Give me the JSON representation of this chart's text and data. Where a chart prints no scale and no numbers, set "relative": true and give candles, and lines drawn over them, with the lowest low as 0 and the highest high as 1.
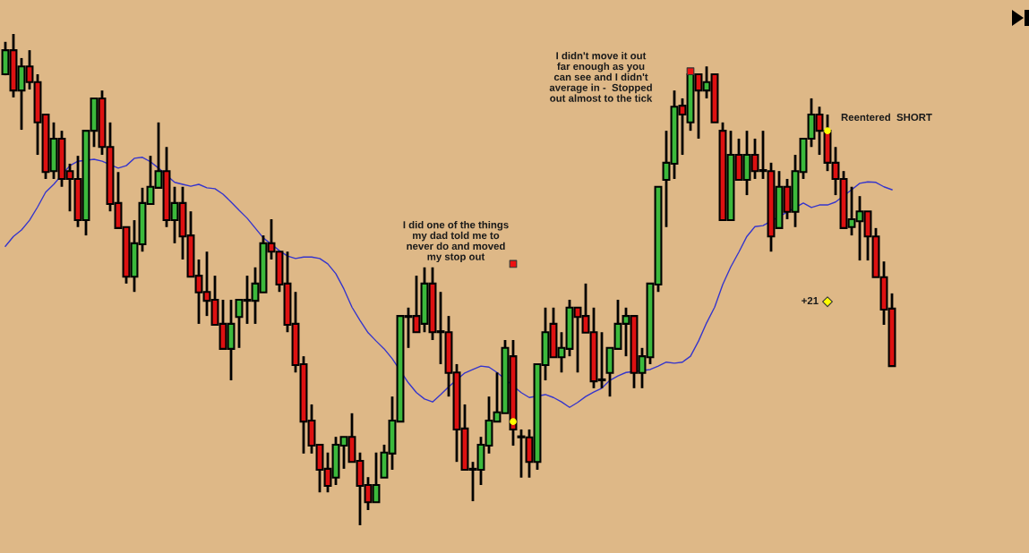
{
  "chart_data": {
    "type": "candlestick",
    "relative": true,
    "categories": [
      null,
      null,
      null,
      null,
      null,
      null,
      null,
      null,
      null,
      null,
      null,
      null,
      null,
      null,
      null,
      null,
      null,
      null,
      null,
      null,
      null,
      null,
      null,
      null,
      null,
      null,
      null,
      null,
      null,
      null,
      null,
      null,
      null,
      null,
      null,
      null,
      null,
      null,
      null,
      null,
      null,
      null,
      null,
      null,
      null,
      null,
      null,
      null,
      null,
      null,
      null,
      null,
      null,
      null,
      null,
      null,
      null,
      null,
      null,
      null,
      null,
      null,
      null,
      null,
      null,
      null,
      null,
      null,
      null,
      null,
      null,
      null,
      null,
      null,
      null,
      null,
      null,
      null,
      null,
      null,
      null,
      null,
      null,
      null,
      null,
      null,
      null,
      null,
      null,
      null,
      null,
      null,
      null,
      null,
      null,
      null,
      null,
      null,
      null,
      null,
      null,
      null,
      null,
      null,
      null,
      null,
      null,
      null,
      null,
      null,
      null
    ],
    "ohlc": [
      [
        0.918,
        0.984,
        0.916,
        0.967
      ],
      [
        0.967,
        1.0,
        0.871,
        0.885
      ],
      [
        0.885,
        0.951,
        0.805,
        0.934
      ],
      [
        0.934,
        0.967,
        0.887,
        0.902
      ],
      [
        0.902,
        0.918,
        0.754,
        0.82
      ],
      [
        0.836,
        0.836,
        0.705,
        0.719
      ],
      [
        0.721,
        0.82,
        0.705,
        0.787
      ],
      [
        0.787,
        0.803,
        0.689,
        0.705
      ],
      [
        0.721,
        0.736,
        0.639,
        0.705
      ],
      [
        0.705,
        0.752,
        0.607,
        0.621
      ],
      [
        0.621,
        0.803,
        0.59,
        0.803
      ],
      [
        0.803,
        0.869,
        0.77,
        0.869
      ],
      [
        0.869,
        0.885,
        0.754,
        0.77
      ],
      [
        0.77,
        0.82,
        0.639,
        0.654
      ],
      [
        0.656,
        0.719,
        0.605,
        0.605
      ],
      [
        0.607,
        0.607,
        0.492,
        0.506
      ],
      [
        0.506,
        0.621,
        0.475,
        0.574
      ],
      [
        0.572,
        0.687,
        0.557,
        0.656
      ],
      [
        0.654,
        0.752,
        0.654,
        0.689
      ],
      [
        0.687,
        0.82,
        0.687,
        0.721
      ],
      [
        0.721,
        0.77,
        0.607,
        0.621
      ],
      [
        0.621,
        0.689,
        0.574,
        0.656
      ],
      [
        0.656,
        0.689,
        0.541,
        0.588
      ],
      [
        0.59,
        0.639,
        0.506,
        0.506
      ],
      [
        0.508,
        0.541,
        0.41,
        0.474
      ],
      [
        0.475,
        0.557,
        0.426,
        0.457
      ],
      [
        0.459,
        0.508,
        0.408,
        0.408
      ],
      [
        0.41,
        0.459,
        0.359,
        0.359
      ],
      [
        0.359,
        0.459,
        0.295,
        0.41
      ],
      [
        0.424,
        0.459,
        0.361,
        0.459
      ],
      [
        0.457,
        0.508,
        0.41,
        0.459
      ],
      [
        0.457,
        0.525,
        0.41,
        0.492
      ],
      [
        0.474,
        0.59,
        0.474,
        0.574
      ],
      [
        0.574,
        0.623,
        0.541,
        0.557
      ],
      [
        0.557,
        0.557,
        0.475,
        0.49
      ],
      [
        0.492,
        0.557,
        0.393,
        0.408
      ],
      [
        0.41,
        0.475,
        0.311,
        0.326
      ],
      [
        0.328,
        0.344,
        0.146,
        0.211
      ],
      [
        0.213,
        0.246,
        0.146,
        0.162
      ],
      [
        0.164,
        0.164,
        0.067,
        0.113
      ],
      [
        0.115,
        0.148,
        0.067,
        0.08
      ],
      [
        0.097,
        0.18,
        0.082,
        0.164
      ],
      [
        0.162,
        0.18,
        0.115,
        0.18
      ],
      [
        0.18,
        0.228,
        0.129,
        0.129
      ],
      [
        0.131,
        0.148,
        0.0,
        0.08
      ],
      [
        0.082,
        0.098,
        0.031,
        0.047
      ],
      [
        0.047,
        0.148,
        0.047,
        0.082
      ],
      [
        0.097,
        0.164,
        0.097,
        0.148
      ],
      [
        0.146,
        0.262,
        0.113,
        0.213
      ],
      [
        0.211,
        0.426,
        0.211,
        0.426
      ],
      [
        0.424,
        0.443,
        0.361,
        0.426
      ],
      [
        0.426,
        0.508,
        0.393,
        0.393
      ],
      [
        0.41,
        0.525,
        0.393,
        0.492
      ],
      [
        0.492,
        0.525,
        0.377,
        0.393
      ],
      [
        0.393,
        0.475,
        0.328,
        0.393
      ],
      [
        0.393,
        0.426,
        0.262,
        0.31
      ],
      [
        0.311,
        0.328,
        0.129,
        0.195
      ],
      [
        0.197,
        0.246,
        0.113,
        0.113
      ],
      [
        0.113,
        0.129,
        0.049,
        0.113
      ],
      [
        0.113,
        0.18,
        0.082,
        0.164
      ],
      [
        0.162,
        0.262,
        0.146,
        0.213
      ],
      [
        0.211,
        0.311,
        0.211,
        0.23
      ],
      [
        0.228,
        0.377,
        0.228,
        0.361
      ],
      [
        0.344,
        0.377,
        0.162,
        0.195
      ],
      [
        0.179,
        0.195,
        0.097,
        0.179
      ],
      [
        0.179,
        0.195,
        0.097,
        0.129
      ],
      [
        0.129,
        0.328,
        0.113,
        0.328
      ],
      [
        0.326,
        0.443,
        0.295,
        0.393
      ],
      [
        0.41,
        0.443,
        0.342,
        0.342
      ],
      [
        0.342,
        0.393,
        0.311,
        0.361
      ],
      [
        0.359,
        0.459,
        0.344,
        0.443
      ],
      [
        0.443,
        0.443,
        0.311,
        0.424
      ],
      [
        0.426,
        0.492,
        0.392,
        0.392
      ],
      [
        0.393,
        0.443,
        0.279,
        0.293
      ],
      [
        0.295,
        0.393,
        0.279,
        0.295
      ],
      [
        0.31,
        0.361,
        0.262,
        0.361
      ],
      [
        0.359,
        0.459,
        0.359,
        0.41
      ],
      [
        0.41,
        0.443,
        0.344,
        0.426
      ],
      [
        0.426,
        0.426,
        0.279,
        0.31
      ],
      [
        0.31,
        0.361,
        0.279,
        0.344
      ],
      [
        0.342,
        0.492,
        0.328,
        0.492
      ],
      [
        0.49,
        0.689,
        0.475,
        0.689
      ],
      [
        0.703,
        0.803,
        0.607,
        0.738
      ],
      [
        0.736,
        0.885,
        0.705,
        0.852
      ],
      [
        0.854,
        0.869,
        0.754,
        0.836
      ],
      [
        0.82,
        0.918,
        0.803,
        0.918
      ],
      [
        0.918,
        0.918,
        0.787,
        0.885
      ],
      [
        0.885,
        0.934,
        0.869,
        0.902
      ],
      [
        0.918,
        0.918,
        0.82,
        0.82
      ],
      [
        0.803,
        0.82,
        0.621,
        0.621
      ],
      [
        0.621,
        0.803,
        0.621,
        0.754
      ],
      [
        0.754,
        0.787,
        0.703,
        0.703
      ],
      [
        0.703,
        0.803,
        0.672,
        0.754
      ],
      [
        0.754,
        0.787,
        0.705,
        0.721
      ],
      [
        0.721,
        0.803,
        0.705,
        0.721
      ],
      [
        0.721,
        0.738,
        0.557,
        0.588
      ],
      [
        0.605,
        0.721,
        0.605,
        0.689
      ],
      [
        0.689,
        0.705,
        0.623,
        0.638
      ],
      [
        0.638,
        0.754,
        0.607,
        0.721
      ],
      [
        0.719,
        0.787,
        0.705,
        0.787
      ],
      [
        0.787,
        0.869,
        0.77,
        0.836
      ],
      [
        0.836,
        0.852,
        0.754,
        0.803
      ],
      [
        0.803,
        0.836,
        0.721,
        0.738
      ],
      [
        0.738,
        0.77,
        0.672,
        0.705
      ],
      [
        0.705,
        0.721,
        0.605,
        0.605
      ],
      [
        0.607,
        0.689,
        0.59,
        0.623
      ],
      [
        0.619,
        0.67,
        0.539,
        0.639
      ],
      [
        0.639,
        0.639,
        0.539,
        0.588
      ],
      [
        0.588,
        0.605,
        0.505,
        0.505
      ],
      [
        0.505,
        0.537,
        0.408,
        0.439
      ],
      [
        0.441,
        0.472,
        0.324,
        0.324
      ]
    ],
    "series": [
      {
        "type": "line",
        "color": "#3535cc",
        "marker": "none",
        "line_style": "solid",
        "values": [
          0.568,
          0.588,
          0.601,
          0.621,
          0.648,
          0.678,
          0.694,
          null,
          0.732,
          0.741,
          null,
          0.745,
          0.741,
          null,
          0.727,
          0.732,
          0.747,
          0.749,
          0.74,
          0.727,
          null,
          0.698,
          0.694,
          0.69,
          0.694,
          0.687,
          0.685,
          0.674,
          0.658,
          0.641,
          0.625,
          0.605,
          0.585,
          null,
          0.559,
          0.548,
          0.543,
          0.546,
          0.546,
          0.543,
          0.532,
          0.512,
          0.481,
          0.444,
          0.417,
          0.392,
          0.375,
          0.359,
          0.339,
          null,
          0.29,
          0.27,
          0.257,
          0.251,
          0.266,
          0.282,
          null,
          0.31,
          0.317,
          0.324,
          0.322,
          0.311,
          null,
          null,
          0.27,
          0.26,
          null,
          0.266,
          0.26,
          0.251,
          0.24,
          0.25,
          0.262,
          0.271,
          0.279,
          0.295,
          0.304,
          0.311,
          null,
          null,
          0.317,
          0.324,
          0.332,
          0.33,
          0.332,
          0.344,
          0.375,
          0.412,
          0.444,
          0.49,
          0.526,
          0.556,
          0.588,
          0.608,
          0.61,
          null,
          null,
          null,
          null,
          0.656,
          0.647,
          0.652,
          0.652,
          0.658,
          null,
          0.683,
          0.696,
          0.699,
          0.698,
          0.689,
          0.683
        ]
      },
      {
        "type": "scatter",
        "color": "#ffff00",
        "marker": "circle",
        "values": [
          null,
          null,
          null,
          null,
          null,
          null,
          null,
          null,
          null,
          null,
          null,
          null,
          null,
          null,
          null,
          null,
          null,
          null,
          null,
          null,
          null,
          null,
          null,
          null,
          null,
          null,
          null,
          null,
          null,
          null,
          null,
          null,
          null,
          null,
          null,
          null,
          null,
          null,
          null,
          null,
          null,
          null,
          null,
          null,
          null,
          null,
          null,
          null,
          null,
          null,
          null,
          null,
          null,
          null,
          null,
          null,
          null,
          null,
          null,
          null,
          null,
          null,
          null,
          0.211,
          null,
          null,
          null,
          null,
          null,
          null,
          null,
          null,
          null,
          null,
          null,
          null,
          null,
          null,
          null,
          null,
          null,
          null,
          null,
          null,
          null,
          null,
          null,
          null,
          null,
          null,
          null,
          null,
          null,
          null,
          null,
          null,
          null,
          null,
          null,
          null,
          null,
          null,
          0.803,
          null,
          null,
          null,
          null,
          null,
          null,
          null,
          null
        ]
      },
      {
        "type": "scatter",
        "color": "#ee1111",
        "marker": "square",
        "values": [
          null,
          null,
          null,
          null,
          null,
          null,
          null,
          null,
          null,
          null,
          null,
          null,
          null,
          null,
          null,
          null,
          null,
          null,
          null,
          null,
          null,
          null,
          null,
          null,
          null,
          null,
          null,
          null,
          null,
          null,
          null,
          null,
          null,
          null,
          null,
          null,
          null,
          null,
          null,
          null,
          null,
          null,
          null,
          null,
          null,
          null,
          null,
          null,
          null,
          null,
          null,
          null,
          null,
          null,
          null,
          null,
          null,
          null,
          null,
          null,
          null,
          null,
          null,
          0.532,
          null,
          null,
          null,
          null,
          null,
          null,
          null,
          null,
          null,
          null,
          null,
          null,
          null,
          null,
          null,
          null,
          null,
          null,
          null,
          null,
          null,
          0.924,
          null,
          null,
          null,
          null,
          null,
          null,
          null,
          null,
          null,
          null,
          null,
          null,
          null,
          null,
          null,
          null,
          null,
          null,
          null,
          null,
          null,
          null,
          null,
          null,
          null
        ]
      },
      {
        "type": "scatter",
        "color": "#ffff00",
        "marker": "diamond",
        "values": [
          null,
          null,
          null,
          null,
          null,
          null,
          null,
          null,
          null,
          null,
          null,
          null,
          null,
          null,
          null,
          null,
          null,
          null,
          null,
          null,
          null,
          null,
          null,
          null,
          null,
          null,
          null,
          null,
          null,
          null,
          null,
          null,
          null,
          null,
          null,
          null,
          null,
          null,
          null,
          null,
          null,
          null,
          null,
          null,
          null,
          null,
          null,
          null,
          null,
          null,
          null,
          null,
          null,
          null,
          null,
          null,
          null,
          null,
          null,
          null,
          null,
          null,
          null,
          null,
          null,
          null,
          null,
          null,
          null,
          null,
          null,
          null,
          null,
          null,
          null,
          null,
          null,
          null,
          null,
          null,
          null,
          null,
          null,
          null,
          null,
          null,
          null,
          null,
          null,
          null,
          null,
          null,
          null,
          null,
          null,
          null,
          null,
          null,
          null,
          null,
          null,
          null,
          0.455,
          null,
          null,
          null,
          null,
          null,
          null,
          null,
          null
        ]
      }
    ],
    "annotations": [
      "I did one of the things\nmy dad told me to\nnever do and moved\nmy stop out",
      "I didn't move it out\nfar enough as you\ncan see and I didn't\naverage in -  Stopped\nout almost to the tick",
      "Reentered  SHORT",
      "+21"
    ]
  }
}
